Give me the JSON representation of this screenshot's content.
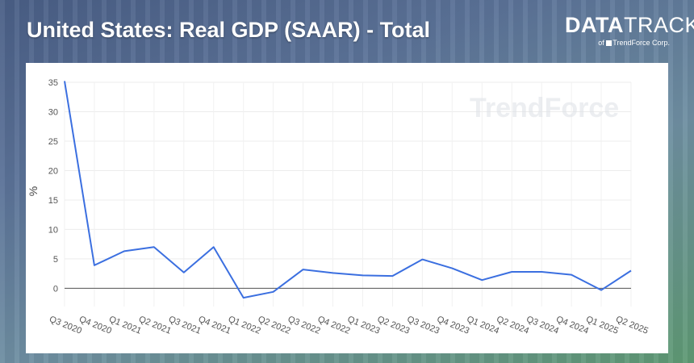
{
  "header": {
    "title": "United States: Real GDP (SAAR) - Total"
  },
  "logo": {
    "bold": "DATA",
    "light": "TRACK",
    "sub_prefix": "of",
    "sub_brand": "TrendForce Corp."
  },
  "watermark": "TrendForce",
  "chart_data": {
    "type": "line",
    "title": "United States: Real GDP (SAAR) - Total",
    "ylabel": "%",
    "xlabel": "",
    "ylim": [
      -2,
      35
    ],
    "yticks": [
      0,
      5,
      10,
      15,
      20,
      25,
      30,
      35
    ],
    "grid": true,
    "categories": [
      "Q3 2020",
      "Q4 2020",
      "Q1 2021",
      "Q2 2021",
      "Q3 2021",
      "Q4 2021",
      "Q1 2022",
      "Q2 2022",
      "Q3 2022",
      "Q4 2022",
      "Q1 2023",
      "Q2 2023",
      "Q3 2023",
      "Q4 2023",
      "Q1 2024",
      "Q2 2024",
      "Q3 2024",
      "Q4 2024",
      "Q1 2025",
      "Q2 2025"
    ],
    "series": [
      {
        "name": "",
        "color": "#3b6fe0",
        "values": [
          35.2,
          3.9,
          6.3,
          7.0,
          2.7,
          7.0,
          -1.6,
          -0.6,
          3.2,
          2.6,
          2.2,
          2.1,
          4.9,
          3.4,
          1.4,
          2.8,
          2.8,
          2.3,
          -0.3,
          3.0
        ]
      }
    ]
  }
}
